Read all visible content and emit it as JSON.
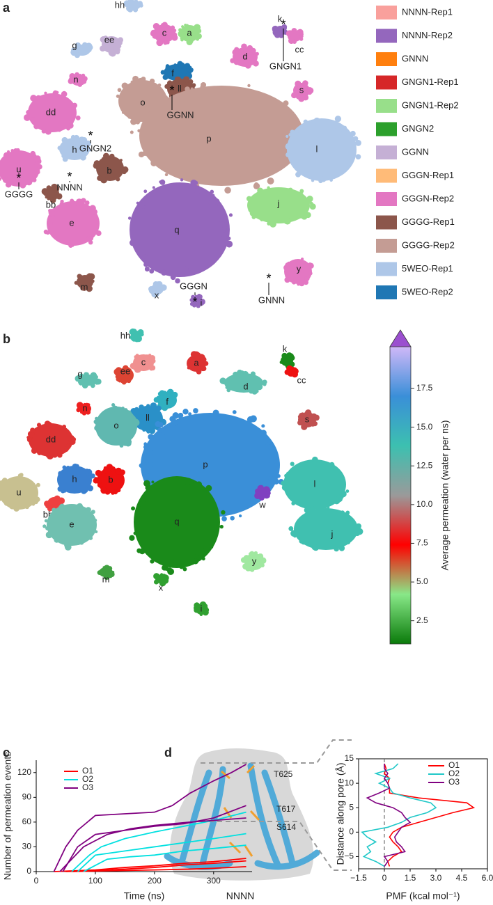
{
  "panel_labels": [
    "a",
    "b",
    "c",
    "d"
  ],
  "chart_data": [
    {
      "type": "cluster-map",
      "clusters": [
        {
          "label": "hh",
          "color": "#aec7e8"
        },
        {
          "label": "k",
          "color": "#9467bd"
        },
        {
          "label": "cc",
          "color": "#e377c2"
        },
        {
          "label": "a",
          "color": "#98df8a"
        },
        {
          "label": "c",
          "color": "#e377c2"
        },
        {
          "label": "ee",
          "color": "#c5b0d5"
        },
        {
          "label": "g",
          "color": "#aec7e8"
        },
        {
          "label": "d",
          "color": "#e377c2"
        },
        {
          "label": "f",
          "color": "#1f77b4"
        },
        {
          "label": "n",
          "color": "#e377c2"
        },
        {
          "label": "s",
          "color": "#e377c2"
        },
        {
          "label": "ll",
          "color": "#8c564b"
        },
        {
          "label": "o",
          "color": "#c49c94"
        },
        {
          "label": "dd",
          "color": "#e377c2"
        },
        {
          "label": "p",
          "color": "#c49c94"
        },
        {
          "label": "h",
          "color": "#aec7e8"
        },
        {
          "label": "l",
          "color": "#aec7e8"
        },
        {
          "label": "u",
          "color": "#e377c2"
        },
        {
          "label": "b",
          "color": "#8c564b"
        },
        {
          "label": "bb",
          "color": "#8c564b"
        },
        {
          "label": "e",
          "color": "#e377c2"
        },
        {
          "label": "q",
          "color": "#9467bd"
        },
        {
          "label": "j",
          "color": "#98df8a"
        },
        {
          "label": "y",
          "color": "#e377c2"
        },
        {
          "label": "m",
          "color": "#8c564b"
        },
        {
          "label": "x",
          "color": "#aec7e8"
        },
        {
          "label": "i",
          "color": "#9467bd"
        }
      ],
      "marker": "*",
      "annotations": [
        "GNGN1",
        "GGNN",
        "GNGN2",
        "GGGG",
        "NNNN",
        "GGGN",
        "GNNN"
      ],
      "series": [
        {
          "name": "NNNN-Rep1",
          "color": "#f9a09c"
        },
        {
          "name": "NNNN-Rep2",
          "color": "#9467bd"
        },
        {
          "name": "GNNN",
          "color": "#ff7f0e"
        },
        {
          "name": "GNGN1-Rep1",
          "color": "#d62728"
        },
        {
          "name": "GNGN1-Rep2",
          "color": "#98df8a"
        },
        {
          "name": "GNGN2",
          "color": "#2ca02c"
        },
        {
          "name": "GGNN",
          "color": "#c5b0d5"
        },
        {
          "name": "GGGN-Rep1",
          "color": "#ffbb78"
        },
        {
          "name": "GGGN-Rep2",
          "color": "#e377c2"
        },
        {
          "name": "GGGG-Rep1",
          "color": "#8c564b"
        },
        {
          "name": "GGGG-Rep2",
          "color": "#c49c94"
        },
        {
          "name": "5WEO-Rep1",
          "color": "#aec7e8"
        },
        {
          "name": "5WEO-Rep2",
          "color": "#1f77b4"
        }
      ],
      "legend": "right"
    },
    {
      "type": "cluster-map",
      "clusters": [
        {
          "label": "hh",
          "color": "#40c0b0"
        },
        {
          "label": "k",
          "color": "#1a8a1a"
        },
        {
          "label": "cc",
          "color": "#ee1111"
        },
        {
          "label": "a",
          "color": "#dd3333"
        },
        {
          "label": "c",
          "color": "#f09090"
        },
        {
          "label": "ee",
          "color": "#dd4433"
        },
        {
          "label": "g",
          "color": "#60c0b0"
        },
        {
          "label": "d",
          "color": "#60c0b0"
        },
        {
          "label": "f",
          "color": "#30b0c0"
        },
        {
          "label": "n",
          "color": "#ee2020"
        },
        {
          "label": "s",
          "color": "#c05050"
        },
        {
          "label": "ll",
          "color": "#2a90c8"
        },
        {
          "label": "o",
          "color": "#60b8b0"
        },
        {
          "label": "dd",
          "color": "#dd3333"
        },
        {
          "label": "p",
          "color": "#3a8fd8"
        },
        {
          "label": "h",
          "color": "#3a80d0"
        },
        {
          "label": "l",
          "color": "#40c0b0"
        },
        {
          "label": "u",
          "color": "#c8c090"
        },
        {
          "label": "b",
          "color": "#ee1111"
        },
        {
          "label": "bb",
          "color": "#ee4040"
        },
        {
          "label": "w",
          "color": "#8040c0"
        },
        {
          "label": "e",
          "color": "#70c0b0"
        },
        {
          "label": "q",
          "color": "#1a8a1a"
        },
        {
          "label": "j",
          "color": "#40c0b0"
        },
        {
          "label": "y",
          "color": "#a0e8a0"
        },
        {
          "label": "m",
          "color": "#40a040"
        },
        {
          "label": "x",
          "color": "#30a030"
        },
        {
          "label": "i",
          "color": "#30a030"
        }
      ],
      "colorbar": {
        "label": "Average permeation (water per ns)",
        "lim": [
          1,
          20.2
        ],
        "ticks": [
          2.5,
          {
            "value": 5,
            "label": "5.0"
          },
          7.5,
          {
            "value": 10,
            "label": "10.0"
          },
          12.5,
          {
            "value": 15,
            "label": "15.0"
          },
          17.5
        ],
        "colors": [
          "#0a7a0a",
          "#88e888",
          "#ff0000",
          "#9a9a9a",
          "#3cc0b0",
          "#3a8fd8",
          "#d0b8f8"
        ],
        "extend_color": "#9b4fcf"
      }
    },
    {
      "type": "line",
      "xlabel": "Time (ns)",
      "ylabel": "Number of permeation events",
      "xlim": [
        0,
        365
      ],
      "ylim": [
        0,
        135
      ],
      "xticks": [
        0,
        100,
        200,
        300
      ],
      "yticks": [
        0,
        30,
        60,
        90,
        120
      ],
      "series": [
        {
          "name": "O1",
          "color": "#ff0000",
          "runs": [
            {
              "x": [
                30,
                100,
                150,
                200,
                250,
                300,
                355
              ],
              "values": [
                0,
                2,
                5,
                7,
                10,
                12,
                16
              ]
            },
            {
              "x": [
                50,
                100,
                150,
                200,
                250,
                300,
                355
              ],
              "values": [
                0,
                1,
                3,
                5,
                8,
                10,
                13
              ]
            },
            {
              "x": [
                60,
                120,
                200,
                260,
                300,
                355
              ],
              "values": [
                0,
                1,
                2,
                3,
                4,
                6
              ]
            }
          ]
        },
        {
          "name": "O2",
          "color": "#00e0e0",
          "runs": [
            {
              "x": [
                60,
                90,
                110,
                150,
                200,
                250,
                300,
                355
              ],
              "values": [
                0,
                20,
                30,
                40,
                48,
                55,
                62,
                72
              ]
            },
            {
              "x": [
                70,
                100,
                150,
                200,
                250,
                300,
                355
              ],
              "values": [
                0,
                20,
                25,
                30,
                35,
                40,
                46
              ]
            },
            {
              "x": [
                80,
                120,
                160,
                200,
                250,
                300,
                355
              ],
              "values": [
                0,
                15,
                18,
                20,
                25,
                28,
                32
              ]
            }
          ]
        },
        {
          "name": "O3",
          "color": "#800080",
          "runs": [
            {
              "x": [
                30,
                50,
                70,
                100,
                150,
                200,
                230,
                260,
                300,
                330,
                355
              ],
              "values": [
                0,
                30,
                50,
                68,
                70,
                72,
                80,
                95,
                110,
                120,
                130
              ]
            },
            {
              "x": [
                45,
                70,
                100,
                150,
                200,
                250,
                300,
                355
              ],
              "values": [
                0,
                30,
                45,
                50,
                55,
                58,
                65,
                80
              ]
            },
            {
              "x": [
                40,
                60,
                80,
                120,
                160,
                200,
                260,
                300,
                355
              ],
              "values": [
                0,
                15,
                30,
                45,
                52,
                56,
                60,
                62,
                65
              ]
            }
          ]
        }
      ]
    },
    {
      "type": "profile",
      "xlabel": "PMF (kcal mol⁻¹)",
      "ylabel": "Distance along pore (Å)",
      "protein_labels": [
        "T625",
        "T617",
        "S614"
      ],
      "caption": "NNNN",
      "xlim": [
        -1.5,
        6.0
      ],
      "ylim": [
        -7.5,
        15
      ],
      "xticks": [
        {
          "value": -1.5,
          "label": "−1.5"
        },
        0,
        1.5,
        {
          "value": 3,
          "label": "3.0"
        },
        4.5,
        {
          "value": 6,
          "label": "6.0"
        }
      ],
      "yticks": [
        {
          "value": -5,
          "label": "−5"
        },
        0,
        5,
        10,
        15
      ],
      "y": [
        -7,
        -6,
        -5,
        -4,
        -3,
        -2,
        -1,
        0,
        1,
        2,
        3,
        4,
        5,
        6,
        7,
        8,
        9,
        10,
        11,
        12,
        13,
        14
      ],
      "series": [
        {
          "name": "O1",
          "color": "#ff0000",
          "values": [
            0.3,
            0.2,
            0.5,
            1.0,
            0.8,
            0.5,
            0.3,
            0.5,
            1.0,
            2.0,
            3.0,
            4.0,
            5.2,
            4.8,
            2.0,
            0.3,
            0.3,
            0.2,
            0.3,
            0,
            0.1,
            0
          ]
        },
        {
          "name": "O2",
          "color": "#20c8c8",
          "values": [
            0,
            -0.5,
            -1.2,
            -0.8,
            -1.0,
            -0.5,
            -1.0,
            -1.3,
            0.2,
            1.0,
            1.5,
            2.5,
            3.0,
            2.7,
            1.5,
            0.5,
            0.3,
            -0.3,
            0.3,
            -0.5,
            0.5,
            0.8
          ]
        },
        {
          "name": "O3",
          "color": "#800080",
          "values": [
            0,
            0.2,
            0,
            1.2,
            1.0,
            0.7,
            0.6,
            0.8,
            1.0,
            1.5,
            1.2,
            1.0,
            0.5,
            -0.5,
            -1.0,
            -0.3,
            0.3,
            0.2,
            0,
            0.2,
            0,
            0
          ]
        }
      ]
    }
  ]
}
